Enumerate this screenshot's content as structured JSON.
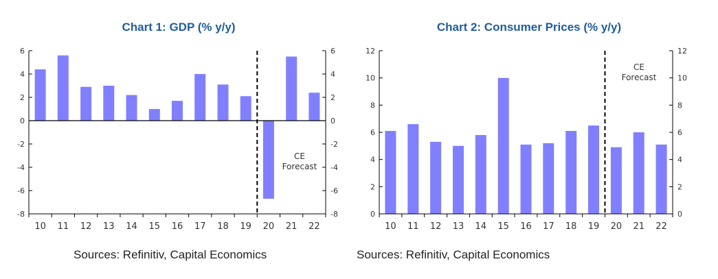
{
  "bar_color": "#8080ff",
  "chart_data": [
    {
      "type": "bar",
      "title": "Chart 1: GDP (% y/y)",
      "categories": [
        "10",
        "11",
        "12",
        "13",
        "14",
        "15",
        "16",
        "17",
        "18",
        "19",
        "20",
        "21",
        "22"
      ],
      "values": [
        4.4,
        5.6,
        2.9,
        3.0,
        2.2,
        1.0,
        1.7,
        4.0,
        3.1,
        2.1,
        -6.7,
        5.5,
        2.4
      ],
      "ylim": [
        -8,
        6
      ],
      "yticks": [
        -8,
        -6,
        -4,
        -2,
        0,
        2,
        4,
        6
      ],
      "forecast_from_index": 10,
      "annotation": [
        "CE",
        "Forecast"
      ],
      "source": "Sources: Refinitiv, Capital Economics"
    },
    {
      "type": "bar",
      "title": "Chart 2: Consumer Prices (% y/y)",
      "categories": [
        "10",
        "11",
        "12",
        "13",
        "14",
        "15",
        "16",
        "17",
        "18",
        "19",
        "20",
        "21",
        "22"
      ],
      "values": [
        6.1,
        6.6,
        5.3,
        5.0,
        5.8,
        10.0,
        5.1,
        5.2,
        6.1,
        6.5,
        4.9,
        6.0,
        5.1
      ],
      "ylim": [
        0,
        12
      ],
      "yticks": [
        0,
        2,
        4,
        6,
        8,
        10,
        12
      ],
      "forecast_from_index": 10,
      "annotation": [
        "CE",
        "Forecast"
      ],
      "source": "Sources: Refinitiv, Capital Economics"
    }
  ]
}
